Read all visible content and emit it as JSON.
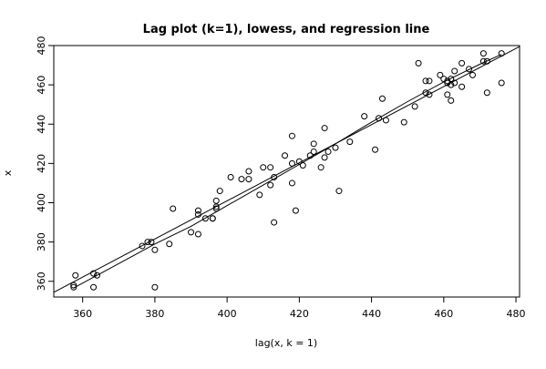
{
  "chart_data": {
    "type": "scatter",
    "title": "Lag plot (k=1), lowess, and regression line",
    "xlabel": "lag(x, k = 1)",
    "ylabel": "x",
    "xlim": [
      352,
      481
    ],
    "ylim": [
      352,
      480
    ],
    "xticks": [
      360,
      380,
      400,
      420,
      440,
      460,
      480
    ],
    "yticks": [
      360,
      380,
      400,
      420,
      440,
      460,
      480
    ],
    "grid": false,
    "legend": "none",
    "points": [
      [
        357.5,
        358
      ],
      [
        357.5,
        357
      ],
      [
        358,
        363
      ],
      [
        363,
        364
      ],
      [
        363,
        357
      ],
      [
        364,
        363
      ],
      [
        376.5,
        378
      ],
      [
        378,
        380
      ],
      [
        379,
        380
      ],
      [
        380,
        376
      ],
      [
        380,
        357
      ],
      [
        384,
        379
      ],
      [
        385,
        397
      ],
      [
        390,
        385
      ],
      [
        392,
        384
      ],
      [
        392,
        394
      ],
      [
        392,
        396
      ],
      [
        394,
        392
      ],
      [
        396,
        392
      ],
      [
        396,
        392
      ],
      [
        397,
        397
      ],
      [
        397,
        398
      ],
      [
        397,
        401
      ],
      [
        398,
        406
      ],
      [
        401,
        413
      ],
      [
        404,
        412
      ],
      [
        406,
        412
      ],
      [
        406,
        416
      ],
      [
        409,
        404
      ],
      [
        410,
        418
      ],
      [
        412,
        418
      ],
      [
        412,
        409
      ],
      [
        413,
        413
      ],
      [
        413,
        390
      ],
      [
        416,
        424
      ],
      [
        418,
        434
      ],
      [
        418,
        420
      ],
      [
        418,
        410
      ],
      [
        419,
        396
      ],
      [
        420,
        421
      ],
      [
        421,
        419
      ],
      [
        423,
        424
      ],
      [
        424,
        426
      ],
      [
        424,
        430
      ],
      [
        426,
        418
      ],
      [
        427,
        438
      ],
      [
        427,
        423
      ],
      [
        428,
        426
      ],
      [
        430,
        428
      ],
      [
        431,
        406
      ],
      [
        434,
        431
      ],
      [
        438,
        444
      ],
      [
        441,
        427
      ],
      [
        442,
        443
      ],
      [
        443,
        453
      ],
      [
        444,
        442
      ],
      [
        449,
        441
      ],
      [
        452,
        449
      ],
      [
        453,
        471
      ],
      [
        455,
        462
      ],
      [
        455,
        456
      ],
      [
        456,
        455
      ],
      [
        456,
        462
      ],
      [
        459,
        465
      ],
      [
        460,
        463
      ],
      [
        461,
        455
      ],
      [
        461,
        461
      ],
      [
        461,
        462
      ],
      [
        462,
        452
      ],
      [
        462,
        463
      ],
      [
        462,
        460
      ],
      [
        463,
        467
      ],
      [
        463,
        461
      ],
      [
        465,
        471
      ],
      [
        465,
        459
      ],
      [
        467,
        468
      ],
      [
        468,
        465
      ],
      [
        471,
        472
      ],
      [
        471,
        476
      ],
      [
        472,
        472
      ],
      [
        472,
        456
      ],
      [
        476,
        476
      ],
      [
        476,
        461
      ]
    ],
    "regression_line": [
      [
        352,
        354.4
      ],
      [
        481,
        479.5
      ]
    ],
    "lowess_line": [
      [
        357.5,
        356.6
      ],
      [
        370,
        369
      ],
      [
        380,
        379
      ],
      [
        390,
        388
      ],
      [
        400,
        398.5
      ],
      [
        410,
        409
      ],
      [
        420,
        419.5
      ],
      [
        430,
        430
      ],
      [
        440,
        441
      ],
      [
        450,
        451.5
      ],
      [
        460,
        461.5
      ],
      [
        470,
        470.5
      ],
      [
        476,
        475.5
      ]
    ]
  }
}
